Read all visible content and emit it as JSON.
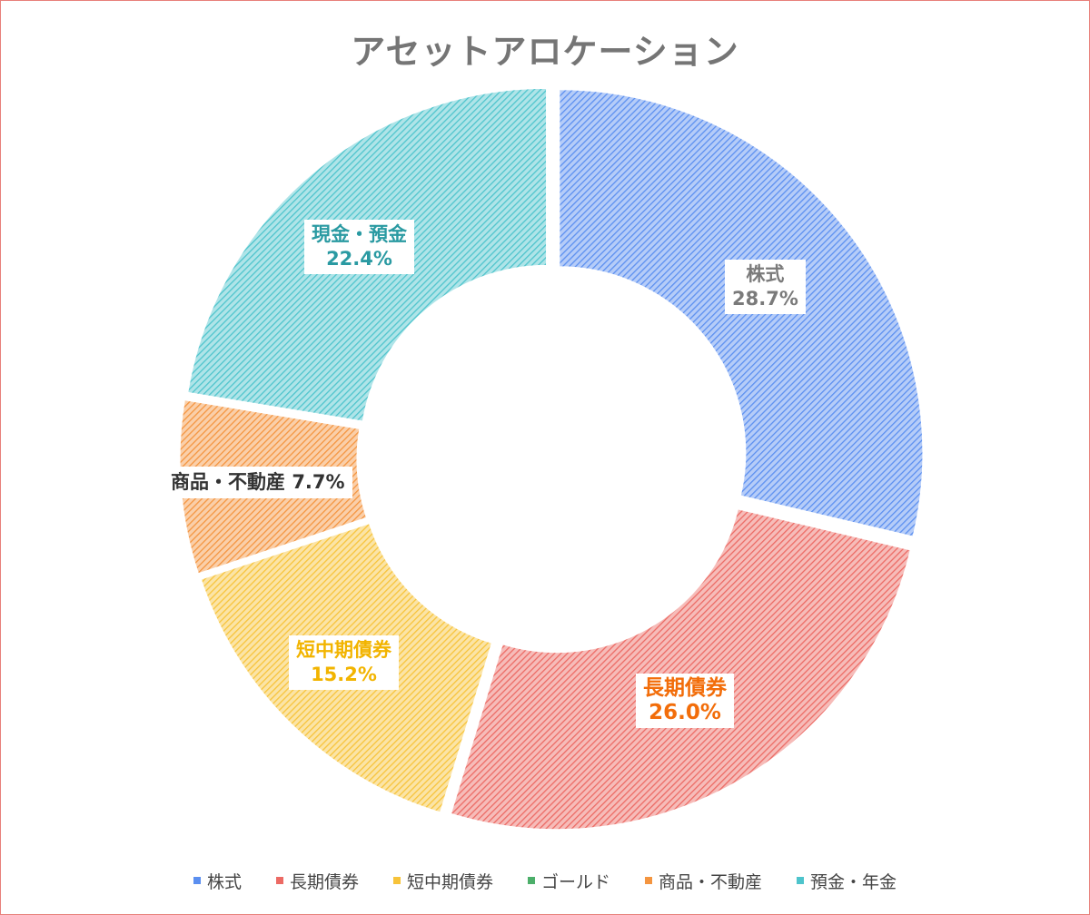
{
  "chart_data": {
    "type": "pie",
    "title": "アセットアロケーション",
    "categories": [
      "株式",
      "長期債券",
      "短中期債券",
      "ゴールド",
      "商品・不動産",
      "預金・年金"
    ],
    "values": [
      28.7,
      26.0,
      15.2,
      0.0,
      7.7,
      22.4
    ],
    "colors": [
      "#5b8ff0",
      "#ec6a64",
      "#f7c33a",
      "#4caf6a",
      "#f49540",
      "#4ec4cc"
    ],
    "legend": "bottom",
    "data_labels": [
      {
        "category": "株式",
        "value": "28.7%",
        "color": "#7a7a7a"
      },
      {
        "category": "長期債券",
        "value": "26.0%",
        "color": "#f26d0a"
      },
      {
        "category": "短中期債券",
        "value": "15.2%",
        "color": "#f2b400"
      },
      {
        "category": "商品・不動産",
        "value": "7.7%",
        "color": "#333333"
      },
      {
        "category": "現金・預金",
        "value": "22.4%",
        "color": "#2a9aa2"
      }
    ]
  }
}
